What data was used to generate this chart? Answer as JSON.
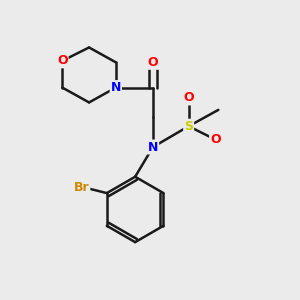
{
  "background_color": "#ebebeb",
  "bond_color": "#1a1a1a",
  "atom_colors": {
    "O": "#ff0000",
    "N": "#0000ff",
    "S": "#cccc00",
    "Br": "#cc8800",
    "C": "#1a1a1a"
  },
  "figsize": [
    3.0,
    3.0
  ],
  "dpi": 100
}
